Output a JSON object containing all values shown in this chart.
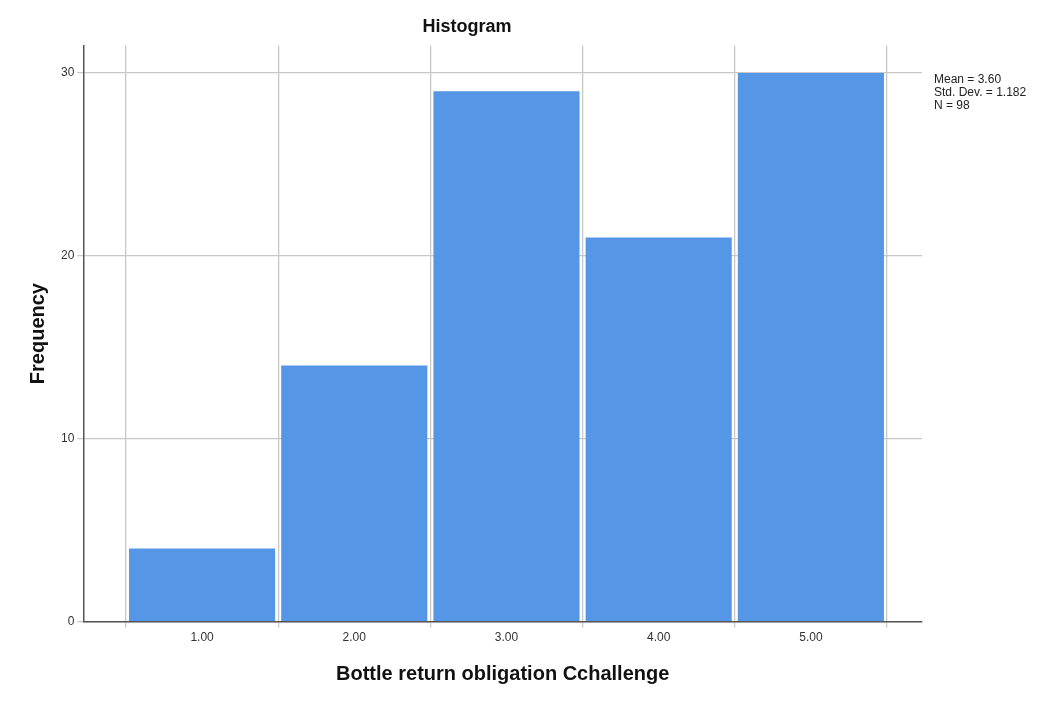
{
  "chart_data": {
    "type": "histogram",
    "title": "Histogram",
    "xlabel": "Bottle return obligation Cchallenge",
    "ylabel": "Frequency",
    "bins": [
      0.5,
      1.5,
      2.5,
      3.5,
      4.5,
      5.5
    ],
    "values": [
      4,
      14,
      29,
      21,
      30
    ],
    "color": "#5596e6",
    "xlim": [
      0.22,
      5.73
    ],
    "xticks": [
      {
        "value": 1,
        "label": "1.00"
      },
      {
        "value": 2,
        "label": "2.00"
      },
      {
        "value": 3,
        "label": "3.00"
      },
      {
        "value": 4,
        "label": "4.00"
      },
      {
        "value": 5,
        "label": "5.00"
      }
    ],
    "ylim": [
      0,
      31.5
    ],
    "yticks": [
      0,
      10,
      20,
      30
    ],
    "grid": true,
    "legend": false,
    "annotations": [
      "Mean = 3.60",
      "Std. Dev. = 1.182",
      "N = 98"
    ]
  }
}
